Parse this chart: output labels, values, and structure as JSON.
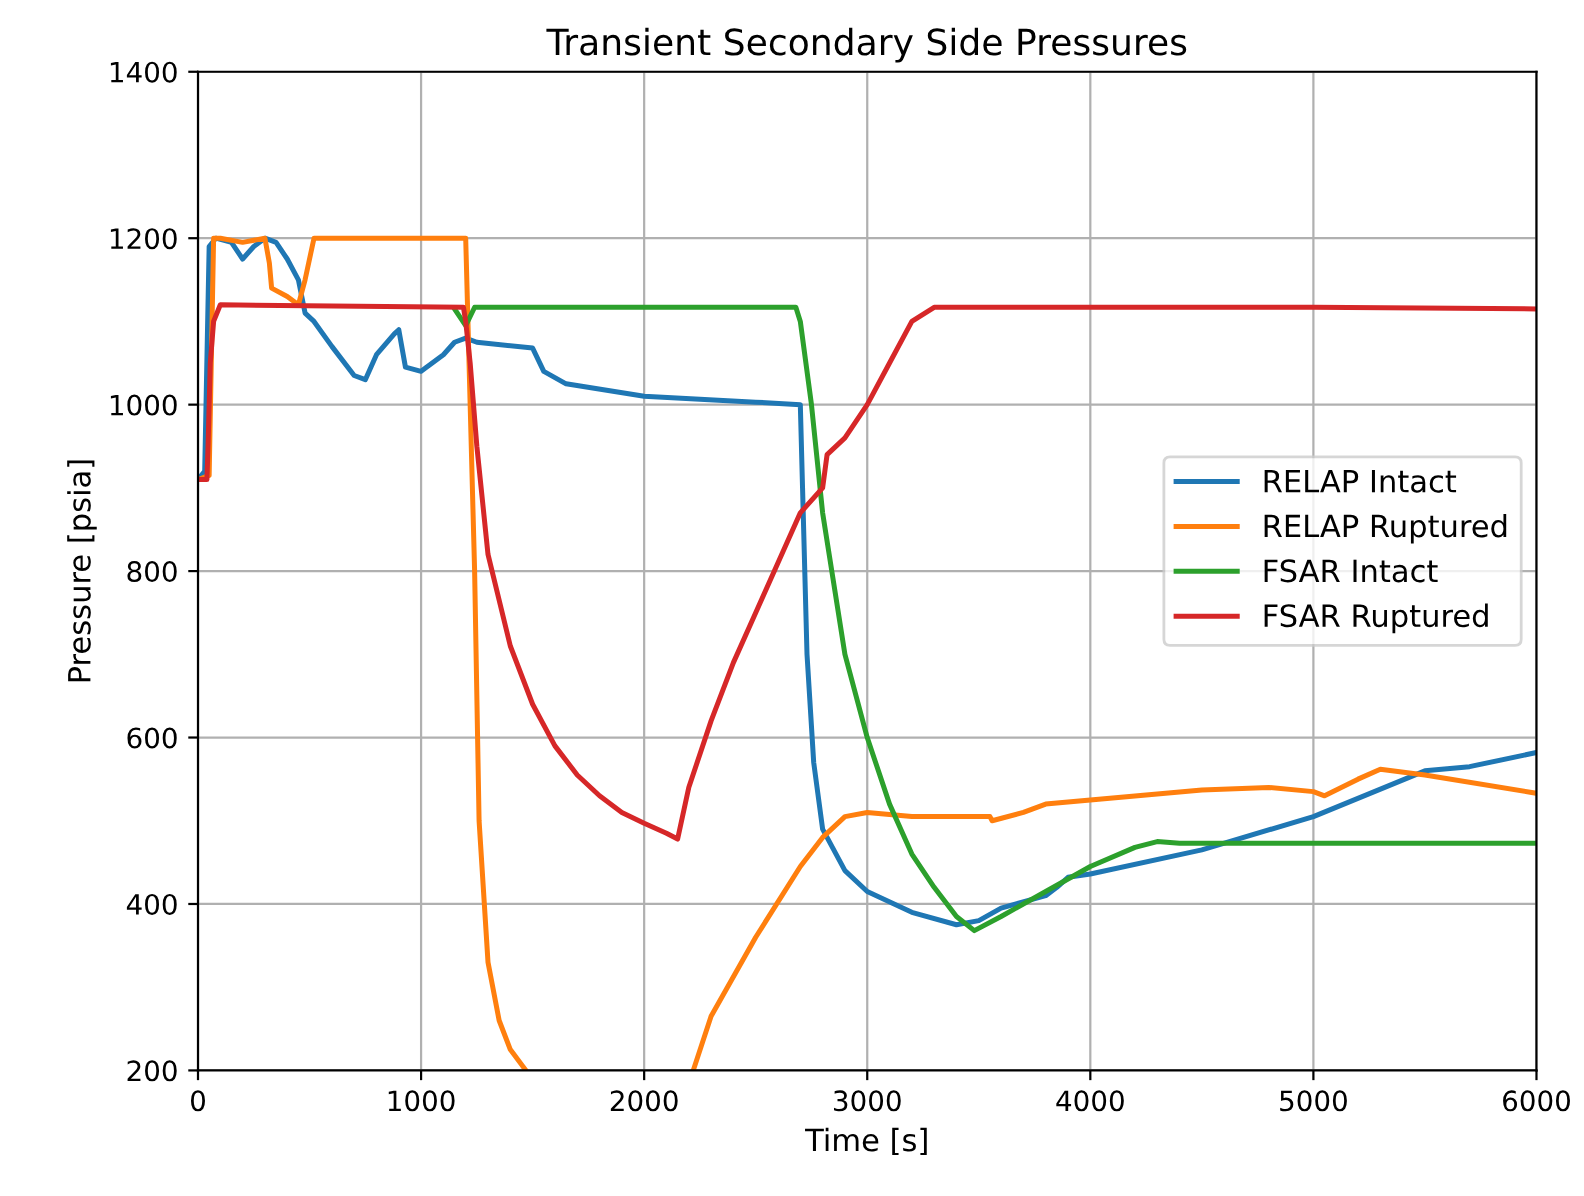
{
  "chart_data": {
    "type": "line",
    "title": "Transient Secondary Side Pressures",
    "xlabel": "Time [s]",
    "ylabel": "Pressure [psia]",
    "xlim": [
      0,
      6000
    ],
    "ylim": [
      200,
      1400
    ],
    "xticks": [
      0,
      1000,
      2000,
      3000,
      4000,
      5000,
      6000
    ],
    "yticks": [
      200,
      400,
      600,
      800,
      1000,
      1200,
      1400
    ],
    "grid": true,
    "legend": "right",
    "series": [
      {
        "name": "RELAP Intact",
        "color": "#1f77b4",
        "x": [
          0,
          30,
          50,
          80,
          150,
          200,
          250,
          300,
          350,
          400,
          450,
          480,
          520,
          600,
          700,
          750,
          800,
          880,
          900,
          930,
          1000,
          1050,
          1100,
          1150,
          1200,
          1250,
          1500,
          1550,
          1650,
          2000,
          2500,
          2700,
          2710,
          2730,
          2760,
          2800,
          2900,
          3000,
          3200,
          3400,
          3500,
          3600,
          3800,
          3850,
          3900,
          4000,
          4500,
          5000,
          5500,
          5700,
          6000
        ],
        "values": [
          910,
          920,
          1190,
          1200,
          1195,
          1175,
          1190,
          1200,
          1195,
          1175,
          1150,
          1110,
          1100,
          1070,
          1035,
          1030,
          1060,
          1085,
          1090,
          1045,
          1040,
          1050,
          1060,
          1075,
          1080,
          1075,
          1068,
          1040,
          1025,
          1010,
          1003,
          1000,
          900,
          700,
          570,
          490,
          440,
          415,
          390,
          375,
          380,
          395,
          410,
          420,
          432,
          436,
          465,
          505,
          560,
          565,
          582
        ]
      },
      {
        "name": "RELAP Ruptured",
        "color": "#ff7f0e",
        "x": [
          0,
          50,
          70,
          100,
          200,
          300,
          320,
          330,
          400,
          450,
          480,
          520,
          1200,
          1210,
          1240,
          1260,
          1300,
          1350,
          1400,
          1470,
          1800,
          2220,
          2300,
          2500,
          2700,
          2800,
          2900,
          3000,
          3200,
          3550,
          3560,
          3700,
          3800,
          4000,
          4500,
          4800,
          5000,
          5050,
          5200,
          5300,
          5500,
          6000
        ],
        "values": [
          910,
          915,
          1200,
          1200,
          1195,
          1200,
          1170,
          1140,
          1130,
          1120,
          1150,
          1200,
          1200,
          1100,
          800,
          500,
          330,
          260,
          225,
          200,
          null,
          200,
          265,
          360,
          445,
          480,
          505,
          510,
          505,
          505,
          500,
          510,
          520,
          525,
          537,
          540,
          535,
          530,
          550,
          562,
          555,
          533
        ]
      },
      {
        "name": "FSAR Intact",
        "color": "#2ca02c",
        "x": [
          1150,
          1200,
          1240,
          2680,
          2700,
          2750,
          2800,
          2900,
          3000,
          3100,
          3200,
          3300,
          3400,
          3480,
          3600,
          3800,
          4000,
          4200,
          4300,
          4400,
          6000
        ],
        "values": [
          1115,
          1095,
          1117,
          1117,
          1100,
          1000,
          870,
          700,
          600,
          520,
          460,
          420,
          385,
          368,
          385,
          415,
          445,
          468,
          475,
          473,
          473
        ]
      },
      {
        "name": "FSAR Ruptured",
        "color": "#d62728",
        "x": [
          0,
          40,
          45,
          55,
          70,
          100,
          1190,
          1200,
          1220,
          1250,
          1300,
          1400,
          1500,
          1600,
          1700,
          1800,
          1900,
          2000,
          2100,
          2150,
          2200,
          2300,
          2400,
          2500,
          2600,
          2700,
          2800,
          2820,
          2900,
          3000,
          3100,
          3200,
          3300,
          5000,
          6000
        ],
        "values": [
          910,
          910,
          950,
          1050,
          1100,
          1120,
          1117,
          1100,
          1050,
          950,
          820,
          710,
          640,
          590,
          555,
          530,
          510,
          497,
          485,
          478,
          540,
          620,
          690,
          750,
          810,
          870,
          900,
          940,
          960,
          1000,
          1050,
          1100,
          1117,
          1117,
          1115
        ]
      }
    ]
  }
}
